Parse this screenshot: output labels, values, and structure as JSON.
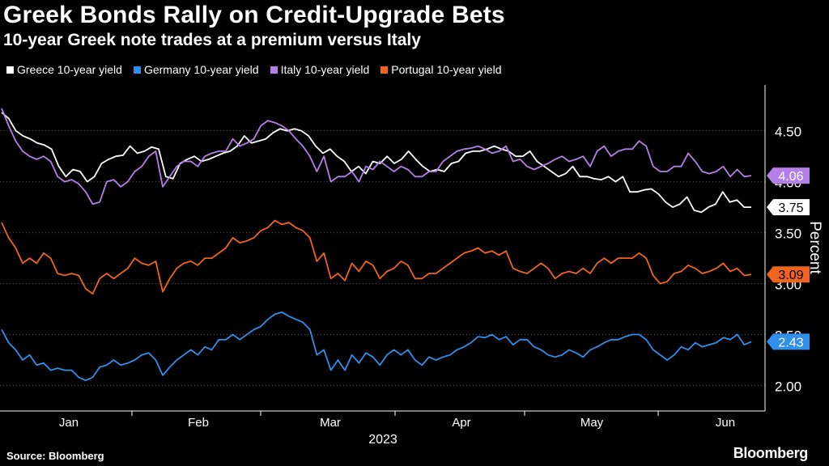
{
  "chart_data": {
    "type": "line",
    "title": "Greek Bonds Rally on Credit-Upgrade Bets",
    "subtitle": "10-year Greek note trades at a premium versus Italy",
    "ylabel": "Percent",
    "xlabel": "2023",
    "ylim": [
      1.75,
      4.95
    ],
    "yticks": [
      "2.00",
      "2.50",
      "3.00",
      "3.50",
      "4.00",
      "4.50"
    ],
    "xticks": [
      "Jan",
      "Feb",
      "Mar",
      "Apr",
      "May",
      "Jun"
    ],
    "series": [
      {
        "name": "Greece 10-year yield",
        "color": "#ffffff",
        "last_label": "3.75",
        "values": [
          4.68,
          4.62,
          4.5,
          4.45,
          4.42,
          4.38,
          4.36,
          4.32,
          4.15,
          4.05,
          4.12,
          4.1,
          4.0,
          4.05,
          4.18,
          4.22,
          4.25,
          4.26,
          4.35,
          4.28,
          4.3,
          4.34,
          4.32,
          4.05,
          4.03,
          4.18,
          4.22,
          4.25,
          4.2,
          4.22,
          4.25,
          4.28,
          4.3,
          4.35,
          4.45,
          4.38,
          4.4,
          4.42,
          4.48,
          4.52,
          4.5,
          4.52,
          4.5,
          4.45,
          4.35,
          4.28,
          4.32,
          4.25,
          4.2,
          4.1,
          4.15,
          4.08,
          4.2,
          4.18,
          4.25,
          4.18,
          4.22,
          4.3,
          4.22,
          4.15,
          4.1,
          4.12,
          4.1,
          4.18,
          4.2,
          4.28,
          4.3,
          4.3,
          4.32,
          4.35,
          4.32,
          4.3,
          4.25,
          4.25,
          4.3,
          4.2,
          4.15,
          4.1,
          4.05,
          4.08,
          4.15,
          4.05,
          4.05,
          4.03,
          4.02,
          4.05,
          4.0,
          4.05,
          3.9,
          3.9,
          3.92,
          3.93,
          3.88,
          3.8,
          3.75,
          3.78,
          3.85,
          3.72,
          3.7,
          3.75,
          3.78,
          3.9,
          3.8,
          3.82,
          3.75,
          3.75
        ]
      },
      {
        "name": "Germany 10-year yield",
        "color": "#2f8fea",
        "last_label": "2.43",
        "values": [
          2.55,
          2.42,
          2.35,
          2.25,
          2.3,
          2.2,
          2.22,
          2.15,
          2.17,
          2.15,
          2.15,
          2.08,
          2.05,
          2.08,
          2.18,
          2.2,
          2.25,
          2.2,
          2.22,
          2.25,
          2.3,
          2.32,
          2.25,
          2.1,
          2.18,
          2.25,
          2.3,
          2.35,
          2.3,
          2.38,
          2.35,
          2.45,
          2.45,
          2.5,
          2.45,
          2.5,
          2.55,
          2.58,
          2.65,
          2.7,
          2.72,
          2.68,
          2.65,
          2.62,
          2.55,
          2.3,
          2.35,
          2.15,
          2.25,
          2.15,
          2.3,
          2.22,
          2.32,
          2.28,
          2.2,
          2.3,
          2.35,
          2.3,
          2.35,
          2.25,
          2.2,
          2.28,
          2.25,
          2.28,
          2.3,
          2.35,
          2.38,
          2.42,
          2.48,
          2.47,
          2.5,
          2.45,
          2.48,
          2.4,
          2.45,
          2.45,
          2.38,
          2.35,
          2.3,
          2.28,
          2.3,
          2.35,
          2.32,
          2.28,
          2.35,
          2.38,
          2.42,
          2.45,
          2.45,
          2.48,
          2.5,
          2.5,
          2.45,
          2.35,
          2.3,
          2.25,
          2.3,
          2.38,
          2.35,
          2.42,
          2.38,
          2.4,
          2.42,
          2.47,
          2.45,
          2.5,
          2.4,
          2.43
        ]
      },
      {
        "name": "Italy 10-year yield",
        "color": "#b57fe8",
        "last_label": "4.06",
        "values": [
          4.72,
          4.55,
          4.4,
          4.3,
          4.25,
          4.22,
          4.25,
          4.2,
          4.05,
          4.0,
          4.02,
          3.98,
          3.9,
          3.78,
          3.8,
          4.0,
          4.02,
          3.95,
          4.0,
          4.1,
          4.15,
          4.25,
          4.3,
          3.95,
          4.05,
          4.15,
          4.2,
          4.2,
          4.15,
          4.25,
          4.28,
          4.3,
          4.3,
          4.42,
          4.35,
          4.38,
          4.42,
          4.55,
          4.6,
          4.58,
          4.55,
          4.5,
          4.42,
          4.35,
          4.25,
          4.1,
          4.25,
          4.0,
          4.05,
          4.05,
          4.1,
          4.0,
          4.15,
          4.12,
          4.2,
          4.15,
          4.1,
          4.15,
          4.12,
          4.05,
          4.05,
          4.1,
          4.1,
          4.2,
          4.25,
          4.3,
          4.32,
          4.33,
          4.35,
          4.32,
          4.28,
          4.3,
          4.35,
          4.2,
          4.22,
          4.15,
          4.12,
          4.15,
          4.18,
          4.22,
          4.25,
          4.2,
          4.22,
          4.25,
          4.15,
          4.3,
          4.35,
          4.25,
          4.3,
          4.32,
          4.32,
          4.4,
          4.35,
          4.15,
          4.1,
          4.1,
          4.15,
          4.15,
          4.28,
          4.2,
          4.1,
          4.08,
          4.1,
          4.15,
          4.05,
          4.12,
          4.05,
          4.06
        ]
      },
      {
        "name": "Portugal 10-year yield",
        "color": "#f0641e",
        "last_label": "3.09",
        "values": [
          3.6,
          3.45,
          3.35,
          3.2,
          3.25,
          3.2,
          3.3,
          3.25,
          3.1,
          3.08,
          3.1,
          3.08,
          2.95,
          2.9,
          3.05,
          3.1,
          3.05,
          3.1,
          3.15,
          3.25,
          3.2,
          3.18,
          3.22,
          2.92,
          3.05,
          3.15,
          3.2,
          3.22,
          3.18,
          3.25,
          3.25,
          3.3,
          3.35,
          3.45,
          3.4,
          3.42,
          3.45,
          3.52,
          3.55,
          3.62,
          3.58,
          3.6,
          3.55,
          3.52,
          3.45,
          3.22,
          3.3,
          3.05,
          3.1,
          3.03,
          3.2,
          3.12,
          3.22,
          3.18,
          3.05,
          3.12,
          3.15,
          3.22,
          3.18,
          3.05,
          3.05,
          3.1,
          3.1,
          3.15,
          3.2,
          3.25,
          3.3,
          3.32,
          3.35,
          3.3,
          3.32,
          3.28,
          3.32,
          3.15,
          3.12,
          3.1,
          3.15,
          3.2,
          3.15,
          3.05,
          3.1,
          3.12,
          3.1,
          3.15,
          3.1,
          3.2,
          3.25,
          3.2,
          3.25,
          3.25,
          3.25,
          3.3,
          3.25,
          3.08,
          3.0,
          3.02,
          3.1,
          3.12,
          3.18,
          3.15,
          3.1,
          3.12,
          3.15,
          3.2,
          3.12,
          3.15,
          3.08,
          3.09
        ]
      }
    ]
  },
  "footer": {
    "source": "Source: Bloomberg",
    "brand": "Bloomberg"
  }
}
